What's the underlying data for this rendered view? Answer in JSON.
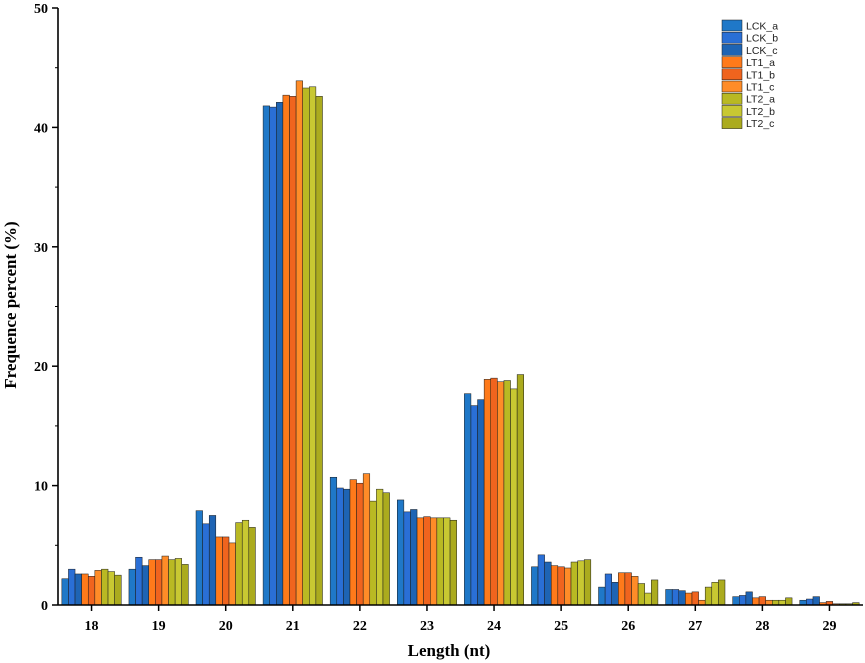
{
  "chart_data": {
    "type": "bar",
    "title": "",
    "xlabel": "Length (nt)",
    "ylabel": "Frequence percent (%)",
    "ylim": [
      0,
      50
    ],
    "yticks": [
      "0",
      "10",
      "20",
      "30",
      "40",
      "50"
    ],
    "grid": false,
    "legend_position": "top-right",
    "categories": [
      "18",
      "19",
      "20",
      "21",
      "22",
      "23",
      "24",
      "25",
      "26",
      "27",
      "28",
      "29"
    ],
    "series": [
      {
        "name": "LCK_a",
        "color": "#1f78c8",
        "values": [
          2.2,
          3.0,
          7.9,
          41.8,
          10.7,
          8.8,
          17.7,
          3.2,
          1.5,
          1.3,
          0.7,
          0.4
        ]
      },
      {
        "name": "LCK_b",
        "color": "#2a6fd6",
        "values": [
          3.0,
          4.0,
          6.8,
          41.7,
          9.8,
          7.8,
          16.7,
          4.2,
          2.6,
          1.3,
          0.8,
          0.5
        ]
      },
      {
        "name": "LCK_c",
        "color": "#1e64b4",
        "values": [
          2.6,
          3.3,
          7.5,
          42.1,
          9.7,
          8.0,
          17.2,
          3.6,
          1.9,
          1.2,
          1.1,
          0.7
        ]
      },
      {
        "name": "LT1_a",
        "color": "#ff7a1a",
        "values": [
          2.6,
          3.8,
          5.7,
          42.7,
          10.5,
          7.3,
          18.9,
          3.3,
          2.7,
          1.0,
          0.6,
          0.2
        ]
      },
      {
        "name": "LT1_b",
        "color": "#f0641e",
        "values": [
          2.4,
          3.8,
          5.7,
          42.6,
          10.2,
          7.4,
          19.0,
          3.2,
          2.7,
          1.1,
          0.7,
          0.3
        ]
      },
      {
        "name": "LT1_c",
        "color": "#ff8c28",
        "values": [
          2.9,
          4.1,
          5.2,
          43.9,
          11.0,
          7.3,
          18.7,
          3.1,
          2.4,
          0.4,
          0.4,
          0.1
        ]
      },
      {
        "name": "LT2_a",
        "color": "#b9b923",
        "values": [
          3.0,
          3.8,
          6.9,
          43.3,
          8.7,
          7.3,
          18.8,
          3.6,
          1.8,
          1.5,
          0.4,
          0.1
        ]
      },
      {
        "name": "LT2_b",
        "color": "#c8c832",
        "values": [
          2.8,
          3.9,
          7.1,
          43.4,
          9.7,
          7.3,
          18.1,
          3.7,
          1.0,
          1.9,
          0.4,
          0.1
        ]
      },
      {
        "name": "LT2_c",
        "color": "#abab1e",
        "values": [
          2.5,
          3.4,
          6.5,
          42.6,
          9.4,
          7.1,
          19.3,
          3.8,
          2.1,
          2.1,
          0.6,
          0.2
        ]
      }
    ]
  }
}
